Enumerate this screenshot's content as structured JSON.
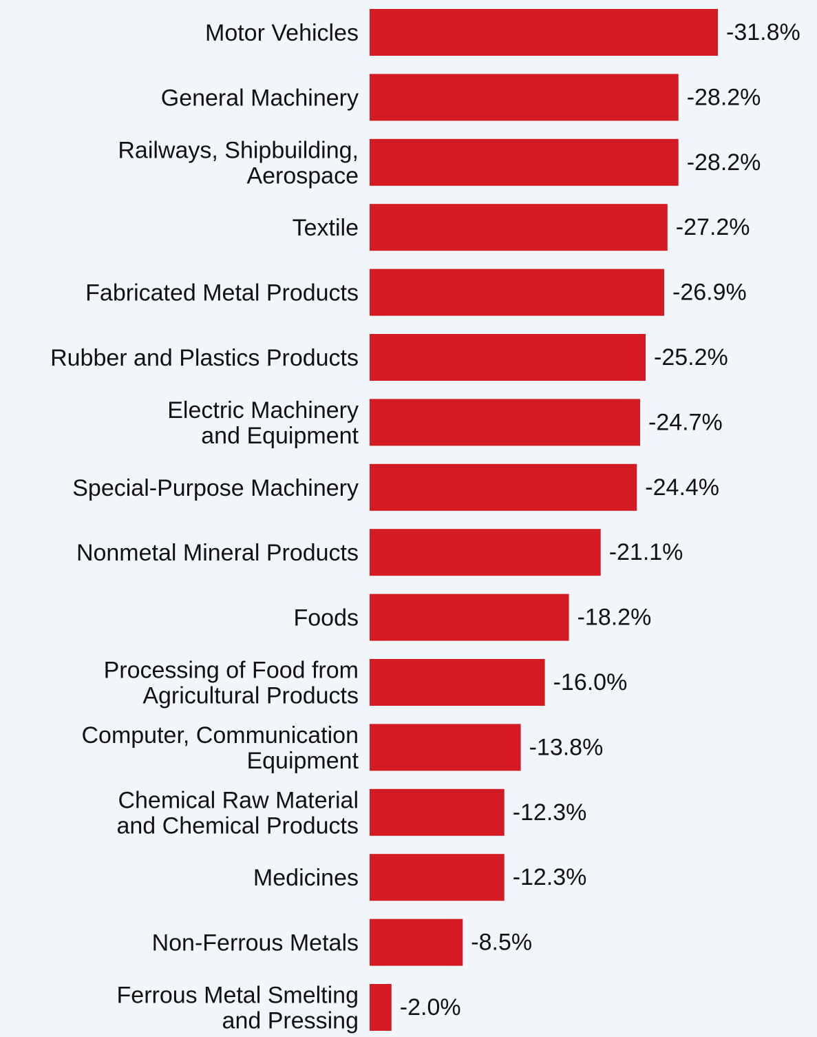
{
  "chart_data": {
    "type": "bar",
    "orientation": "horizontal",
    "title": "",
    "xlabel": "",
    "ylabel": "",
    "grid": false,
    "bar_color": "#d41a22",
    "background": "#f2f6fa",
    "value_suffix": "%",
    "categories": [
      [
        "Motor Vehicles"
      ],
      [
        "General Machinery"
      ],
      [
        "Railways, Shipbuilding,",
        "Aerospace"
      ],
      [
        "Textile"
      ],
      [
        "Fabricated Metal Products"
      ],
      [
        "Rubber and Plastics Products"
      ],
      [
        "Electric Machinery",
        "and Equipment"
      ],
      [
        "Special-Purpose Machinery"
      ],
      [
        "Nonmetal Mineral Products"
      ],
      [
        "Foods"
      ],
      [
        "Processing of Food from",
        "Agricultural Products"
      ],
      [
        "Computer, Communication",
        "Equipment"
      ],
      [
        "Chemical Raw Material",
        "and Chemical Products"
      ],
      [
        "Medicines"
      ],
      [
        "Non-Ferrous Metals"
      ],
      [
        "Ferrous Metal Smelting",
        "and Pressing"
      ]
    ],
    "values": [
      -31.8,
      -28.2,
      -28.2,
      -27.2,
      -26.9,
      -25.2,
      -24.7,
      -24.4,
      -21.1,
      -18.2,
      -16.0,
      -13.8,
      -12.3,
      -12.3,
      -8.5,
      -2.0
    ],
    "value_labels": [
      "-31.8%",
      "-28.2%",
      "-28.2%",
      "-27.2%",
      "-26.9%",
      "-25.2%",
      "-24.7%",
      "-24.4%",
      "-21.1%",
      "-18.2%",
      "-16.0%",
      "-13.8%",
      "-12.3%",
      "-12.3%",
      "-8.5%",
      "-2.0%"
    ]
  }
}
